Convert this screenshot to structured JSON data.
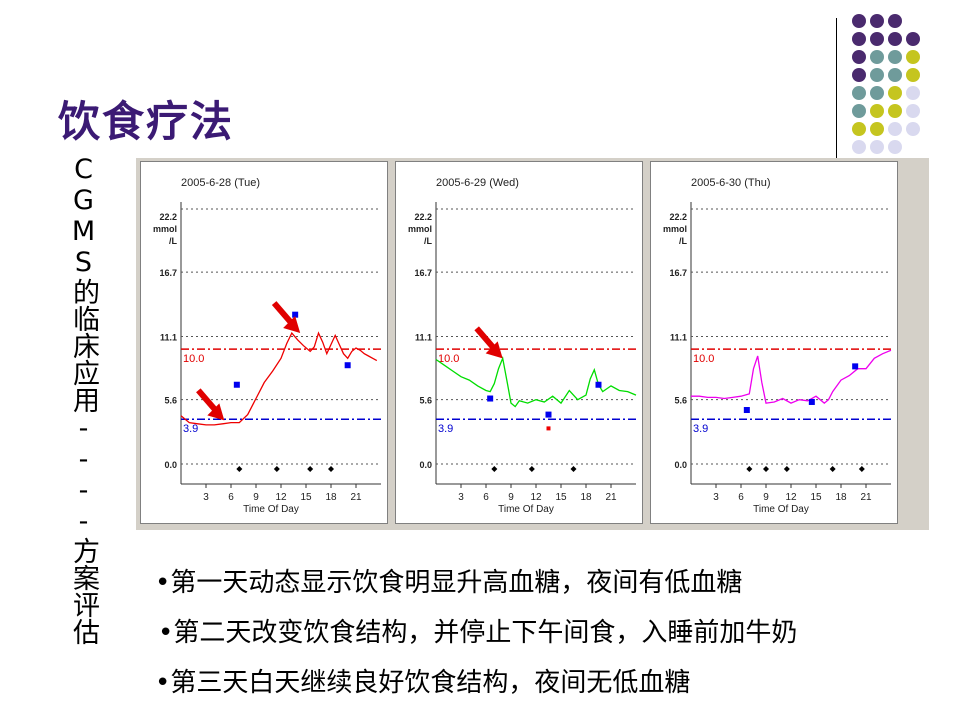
{
  "slide": {
    "title": "饮食疗法",
    "vertical_caption": "CGMS的临床应用----方案评估",
    "bullets": [
      "•第一天动态显示饮食明显升高血糖，夜间有低血糖",
      "•第二天改变饮食结构，并停止下午间食，入睡前加牛奶",
      "•第三天白天继续良好饮食结构，夜间无低血糖"
    ],
    "decor_colors": {
      "purple": "#4a2a6e",
      "teal": "#6f9b9b",
      "olive": "#c5c51f",
      "lavender": "#d9d9ef"
    }
  },
  "chart_data": [
    {
      "type": "line",
      "title": "2005-6-28 (Tue)",
      "xlabel": "Time Of Day",
      "ylabel": "22.2 mmol /L",
      "xlim": [
        0,
        24
      ],
      "ylim": [
        0,
        22.2
      ],
      "x_ticks": [
        "3",
        "6",
        "9",
        "12",
        "15",
        "18",
        "21"
      ],
      "y_ticks": [
        "0.0",
        "5.6",
        "11.1",
        "16.7",
        "22.2"
      ],
      "thresholds": [
        {
          "label": "10.0",
          "value": 10.0,
          "color": "#e00000"
        },
        {
          "label": "3.9",
          "value": 3.9,
          "color": "#0000d0"
        }
      ],
      "series_color": "#ee0000",
      "series": [
        {
          "x": [
            0,
            0.5,
            1,
            2,
            3,
            4,
            5,
            6,
            7,
            8,
            9,
            10,
            11,
            12,
            12.7,
            13.3,
            14,
            14.7,
            15.5,
            16,
            16.5,
            17,
            17.5,
            18,
            18.5,
            19,
            19.5,
            20,
            20.5,
            21,
            21.5,
            22,
            22.5,
            23,
            23.5
          ],
          "y": [
            4.2,
            3.9,
            3.6,
            3.5,
            3.4,
            3.4,
            3.5,
            3.6,
            3.6,
            4.3,
            5.7,
            7.1,
            8.1,
            9.2,
            10.5,
            11.4,
            10.8,
            10.3,
            9.8,
            10.2,
            11.4,
            10.6,
            9.6,
            10.4,
            11.2,
            10.4,
            9.6,
            9.2,
            9.8,
            10.1,
            9.9,
            9.6,
            9.4,
            9.2,
            9.0
          ]
        }
      ],
      "meter_readings": [
        {
          "x": 6.7,
          "y": 6.9,
          "color": "#0000ee"
        },
        {
          "x": 13.7,
          "y": 13.0,
          "color": "#0000ee"
        },
        {
          "x": 20,
          "y": 8.6,
          "color": "#0000ee"
        }
      ],
      "event_markers": [
        7,
        11.5,
        15.5,
        18
      ]
    },
    {
      "type": "line",
      "title": "2005-6-29 (Wed)",
      "xlabel": "Time Of Day",
      "ylabel": "22.2 mmol /L",
      "xlim": [
        0,
        24
      ],
      "ylim": [
        0,
        22.2
      ],
      "x_ticks": [
        "3",
        "6",
        "9",
        "12",
        "15",
        "18",
        "21"
      ],
      "y_ticks": [
        "0.0",
        "5.6",
        "11.1",
        "16.7",
        "22.2"
      ],
      "thresholds": [
        {
          "label": "10.0",
          "value": 10.0,
          "color": "#e00000"
        },
        {
          "label": "3.9",
          "value": 3.9,
          "color": "#0000d0"
        }
      ],
      "series_color": "#00dd00",
      "series": [
        {
          "x": [
            0,
            1,
            2,
            3,
            4,
            5,
            6,
            6.5,
            7,
            7.5,
            8,
            8.5,
            9,
            9.5,
            10,
            11,
            12,
            13,
            14,
            15,
            16,
            17,
            18,
            18.5,
            19,
            19.5,
            20,
            21,
            22,
            23,
            24
          ],
          "y": [
            9.1,
            8.6,
            8.1,
            7.6,
            7.3,
            6.8,
            6.4,
            6.3,
            7.0,
            8.3,
            9.2,
            7.3,
            5.3,
            5.0,
            5.5,
            5.3,
            5.6,
            5.4,
            5.9,
            5.3,
            6.4,
            5.6,
            6.0,
            7.4,
            8.2,
            6.9,
            6.3,
            6.8,
            6.4,
            6.3,
            6.0
          ]
        }
      ],
      "meter_readings": [
        {
          "x": 6.5,
          "y": 5.7,
          "color": "#0000ee"
        },
        {
          "x": 13.5,
          "y": 4.3,
          "color": "#0000ee"
        },
        {
          "x": 19.5,
          "y": 6.9,
          "color": "#0000ee"
        },
        {
          "x": 13.5,
          "y": 3.1,
          "color": "#ee0000"
        }
      ],
      "event_markers": [
        7,
        11.5,
        16.5
      ]
    },
    {
      "type": "line",
      "title": "2005-6-30 (Thu)",
      "xlabel": "Time Of Day",
      "ylabel": "22.2 mmol /L",
      "xlim": [
        0,
        24
      ],
      "ylim": [
        0,
        22.2
      ],
      "x_ticks": [
        "3",
        "6",
        "9",
        "12",
        "15",
        "18",
        "21"
      ],
      "y_ticks": [
        "0.0",
        "5.6",
        "11.1",
        "16.7",
        "22.2"
      ],
      "thresholds": [
        {
          "label": "10.0",
          "value": 10.0,
          "color": "#e00000"
        },
        {
          "label": "3.9",
          "value": 3.9,
          "color": "#0000d0"
        }
      ],
      "series_color": "#ee00ee",
      "series": [
        {
          "x": [
            0,
            1,
            2,
            3,
            4,
            5,
            6,
            7,
            7.5,
            8,
            8.5,
            9,
            10,
            11,
            12,
            13,
            14,
            15,
            16,
            16.5,
            17,
            18,
            19,
            20,
            21,
            22,
            23,
            24
          ],
          "y": [
            5.9,
            5.9,
            5.8,
            5.8,
            5.7,
            5.8,
            5.9,
            6.1,
            8.3,
            9.4,
            7.1,
            5.3,
            5.4,
            5.7,
            5.3,
            5.6,
            5.5,
            5.9,
            5.3,
            5.6,
            6.3,
            7.3,
            7.7,
            8.3,
            8.3,
            9.2,
            9.6,
            9.9
          ]
        }
      ],
      "meter_readings": [
        {
          "x": 6.7,
          "y": 4.7,
          "color": "#0000ee"
        },
        {
          "x": 14.5,
          "y": 5.4,
          "color": "#0000ee"
        },
        {
          "x": 19.7,
          "y": 8.5,
          "color": "#0000ee"
        }
      ],
      "event_markers": [
        7,
        9,
        11.5,
        17,
        20.5
      ]
    }
  ]
}
